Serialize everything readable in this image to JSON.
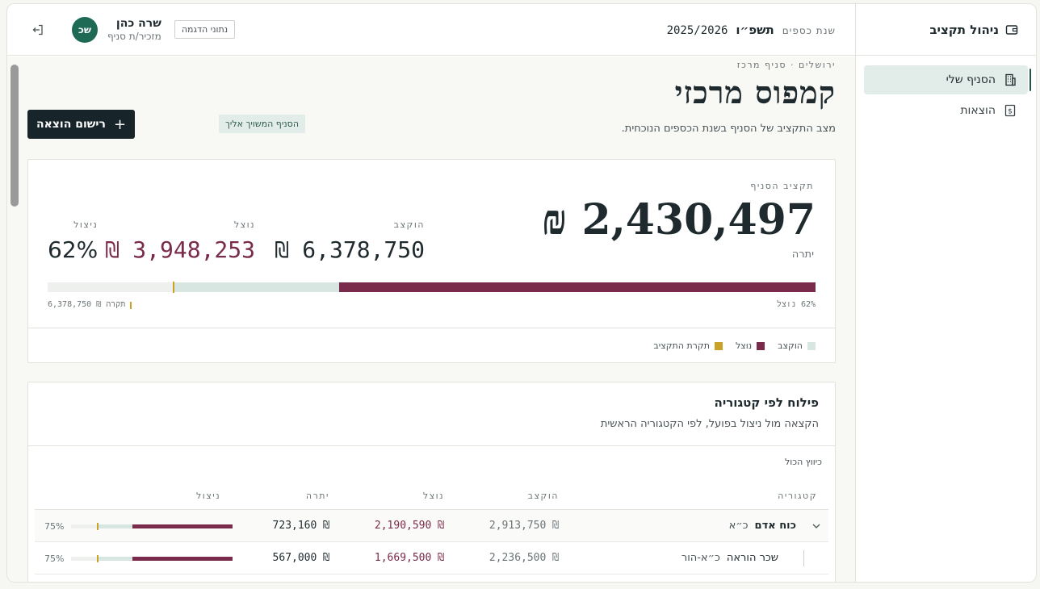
{
  "sidebar": {
    "brand": "ניהול תקציב",
    "items": [
      {
        "label": "הסניף שלי",
        "icon": "building-icon",
        "active": true
      },
      {
        "label": "הוצאות",
        "icon": "dollar-receipt-icon",
        "active": false
      }
    ]
  },
  "header": {
    "fy_label": "שנת כספים",
    "fy_hebrew": "תשפ״ו",
    "fy_number": "2025/2026",
    "demo_badge": "נתוני הדגמה",
    "user_name": "שרה כהן",
    "user_role": "מזכיר/ת סניף",
    "avatar_initials": "שכ"
  },
  "page": {
    "breadcrumb": "ירושלים · סניף מרכז",
    "title": "קמפוס מרכזי",
    "subtitle": "מצב התקציב של הסניף בשנת הכספים הנוכחית.",
    "assigned_badge": "הסניף המשויך אליך",
    "add_button": "רישום הוצאה"
  },
  "budget": {
    "label": "תקציב הסניף",
    "remaining": "2,430,497 ₪",
    "remaining_label": "יתרה",
    "allocated_label": "הוקצב",
    "allocated": "6,378,750 ₪",
    "spent_label": "נוצל",
    "spent": "3,948,253 ₪",
    "utilization_label": "ניצול",
    "utilization": "62%",
    "spent_fraction": 0.62,
    "allocated_fraction": 0.835,
    "cap_fraction": 0.835,
    "bar_right_label": "62% נוצל",
    "bar_left_label": "תקרה ₪ 6,378,750",
    "legend": [
      {
        "label": "הוקצב",
        "color": "#d8e6e2"
      },
      {
        "label": "נוצל",
        "color": "#7a2a4a"
      },
      {
        "label": "תקרת התקציב",
        "color": "#c9a227"
      }
    ]
  },
  "categories": {
    "title": "פילוח לפי קטגוריה",
    "subtitle": "הקצאה מול ניצול בפועל, לפי הקטגוריה הראשית",
    "collapse_all": "כיווץ הכול",
    "headers": {
      "category": "קטגוריה",
      "allocated": "הוקצב",
      "spent": "נוצל",
      "remaining": "יתרה",
      "utilization": "ניצול"
    },
    "rows": [
      {
        "name": "כוח אדם",
        "code": "כ״א",
        "allocated": "₪ 2,913,750",
        "spent": "₪ 2,190,590",
        "remaining": "₪ 723,160",
        "pct": "75%",
        "spent_fraction": 0.62,
        "alloc_fraction": 0.83,
        "cap_fraction": 0.83
      },
      {
        "name": "שכר הוראה",
        "code": "כ״א-הור",
        "allocated": "₪ 2,236,500",
        "spent": "₪ 1,669,500",
        "remaining": "₪ 567,000",
        "pct": "75%",
        "spent_fraction": 0.62,
        "alloc_fraction": 0.83,
        "cap_fraction": 0.83
      }
    ]
  }
}
